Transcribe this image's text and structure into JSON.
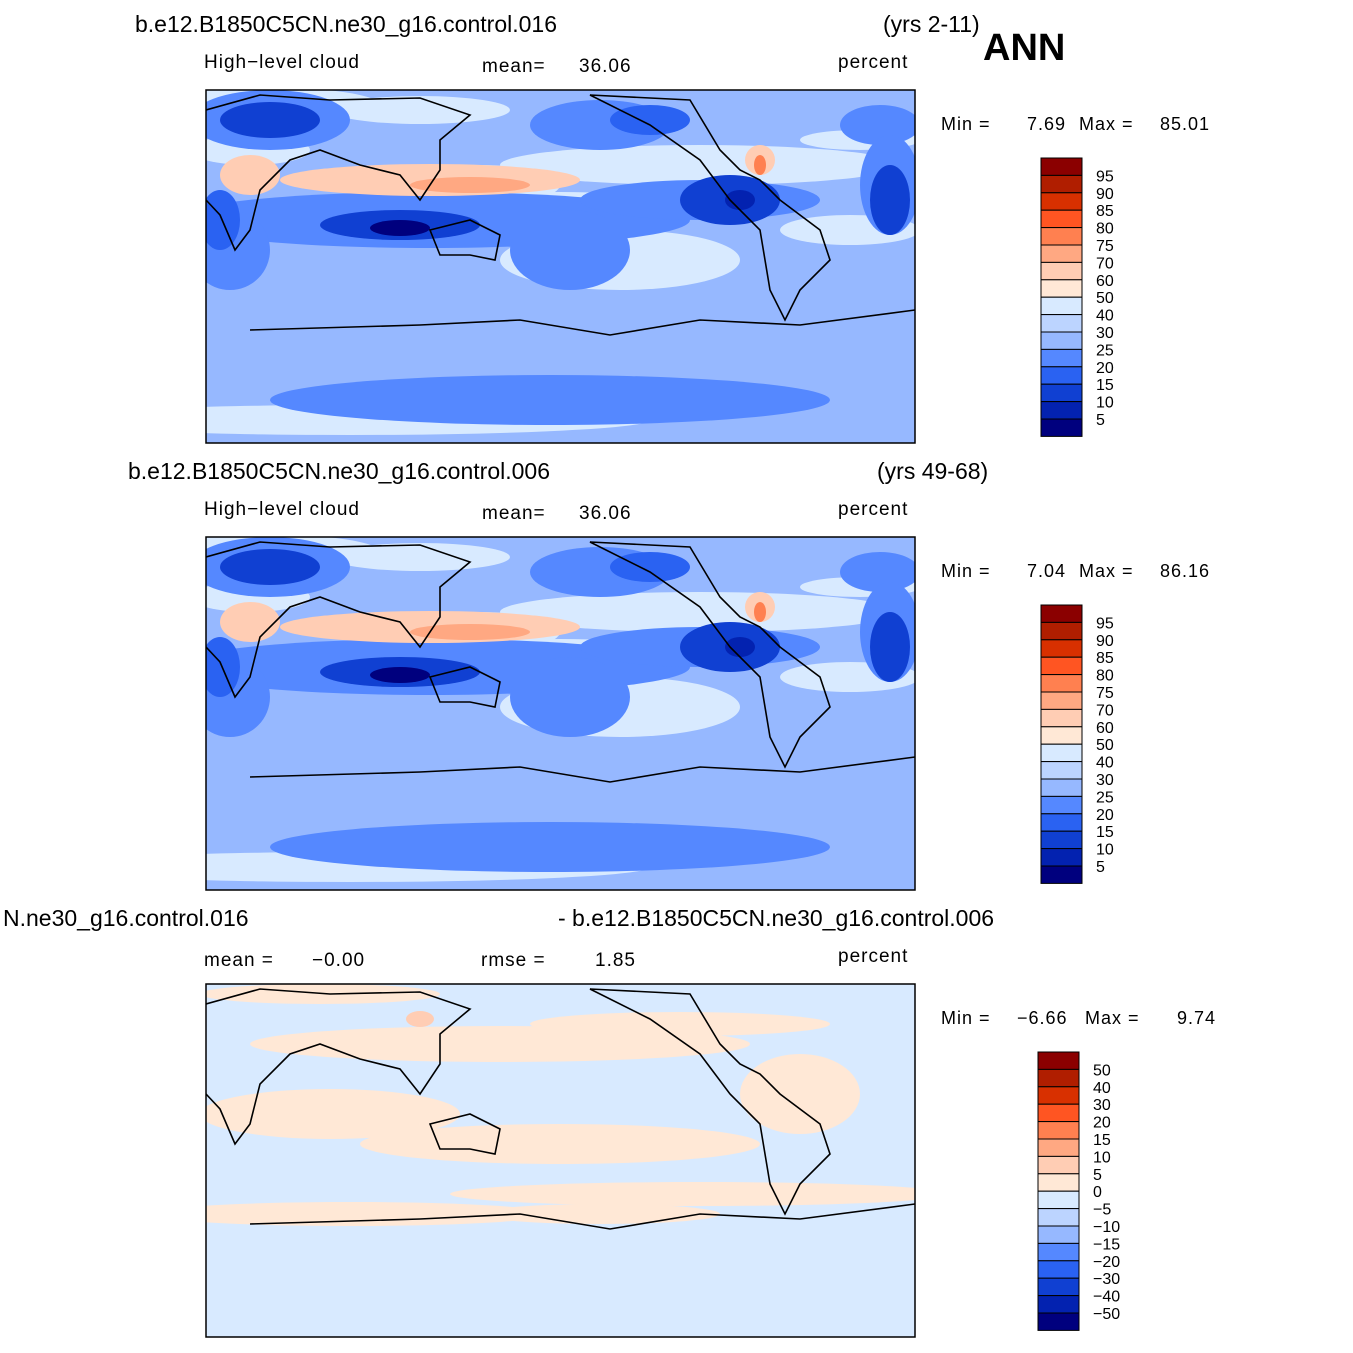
{
  "header": {
    "season": "ANN"
  },
  "panels": [
    {
      "case": "b.e12.B1850C5CN.ne30_g16.control.016",
      "years": "(yrs 2-11)",
      "variable": "High−level cloud",
      "stat1_label": "mean=",
      "stat1": "36.06",
      "units": "percent",
      "min_label": "Min =",
      "min": "7.69",
      "max_label": "Max =",
      "max": "85.01",
      "colorbar": {
        "levels": [
          "95",
          "90",
          "85",
          "80",
          "75",
          "70",
          "60",
          "50",
          "40",
          "30",
          "25",
          "20",
          "15",
          "10",
          "5"
        ],
        "colors": [
          "#8b0000",
          "#b01e00",
          "#d83000",
          "#ff5522",
          "#ff8050",
          "#ffa882",
          "#ffcdb4",
          "#ffe8d6",
          "#d8eaff",
          "#bcd4ff",
          "#96b8ff",
          "#5588ff",
          "#2a62f2",
          "#1040d2",
          "#0322b0",
          "#00007e"
        ]
      }
    },
    {
      "case": "b.e12.B1850C5CN.ne30_g16.control.006",
      "years": "(yrs 49-68)",
      "variable": "High−level cloud",
      "stat1_label": "mean=",
      "stat1": "36.06",
      "units": "percent",
      "min_label": "Min =",
      "min": "7.04",
      "max_label": "Max =",
      "max": "86.16",
      "colorbar": {
        "levels": [
          "95",
          "90",
          "85",
          "80",
          "75",
          "70",
          "60",
          "50",
          "40",
          "30",
          "25",
          "20",
          "15",
          "10",
          "5"
        ],
        "colors": [
          "#8b0000",
          "#b01e00",
          "#d83000",
          "#ff5522",
          "#ff8050",
          "#ffa882",
          "#ffcdb4",
          "#ffe8d6",
          "#d8eaff",
          "#bcd4ff",
          "#96b8ff",
          "#5588ff",
          "#2a62f2",
          "#1040d2",
          "#0322b0",
          "#00007e"
        ]
      }
    },
    {
      "case": "N.ne30_g16.control.016",
      "case_right": "- b.e12.B1850C5CN.ne30_g16.control.006",
      "stat1_label": "mean =",
      "stat1": "−0.00",
      "stat2_label": "rmse =",
      "stat2": "1.85",
      "units": "percent",
      "min_label": "Min =",
      "min": "−6.66",
      "max_label": "Max =",
      "max": "9.74",
      "colorbar": {
        "levels": [
          "50",
          "40",
          "30",
          "20",
          "15",
          "10",
          "5",
          "0",
          "−5",
          "−10",
          "−15",
          "−20",
          "−30",
          "−40",
          "−50"
        ],
        "colors": [
          "#8b0000",
          "#b01e00",
          "#d83000",
          "#ff5522",
          "#ff8050",
          "#ffa882",
          "#ffcdb4",
          "#ffe8d6",
          "#d8eaff",
          "#bcd4ff",
          "#96b8ff",
          "#5588ff",
          "#2a62f2",
          "#1040d2",
          "#0322b0",
          "#00007e"
        ]
      }
    }
  ]
}
